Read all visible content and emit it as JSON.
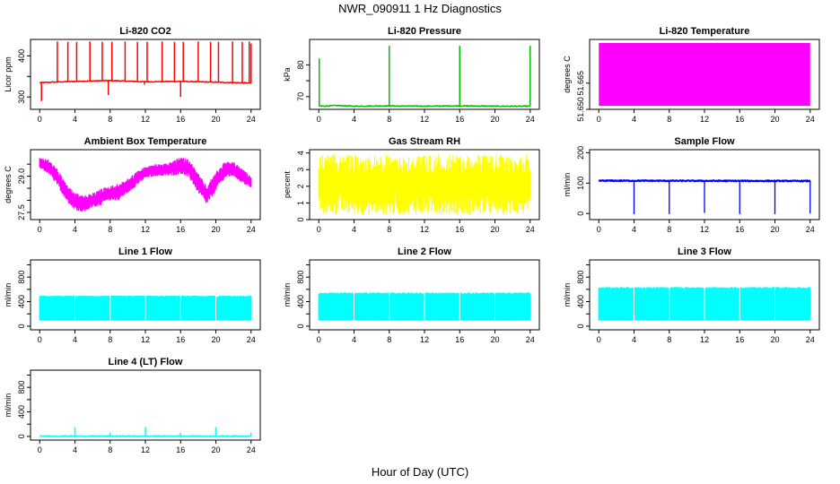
{
  "figure": {
    "title": "NWR_090911 1 Hz Diagnostics",
    "xlabel": "Hour of Day (UTC)"
  },
  "chart_data": [
    {
      "type": "line",
      "title": "Li-820 CO2",
      "ylabel": "Licor ppm",
      "color": "#ff0000",
      "xlim": [
        0,
        24
      ],
      "ylim": [
        270,
        440
      ],
      "xticks": [
        0,
        4,
        8,
        12,
        16,
        20,
        24
      ],
      "yticks": [
        300,
        350,
        400
      ],
      "yticklabels": [
        "300",
        "",
        "400"
      ],
      "baseline": [
        [
          0,
          335
        ],
        [
          4,
          338
        ],
        [
          8,
          340
        ],
        [
          12,
          337
        ],
        [
          16,
          338
        ],
        [
          20,
          336
        ],
        [
          24,
          334
        ]
      ],
      "spikes": [
        [
          0.2,
          290
        ],
        [
          2,
          435
        ],
        [
          3.2,
          434
        ],
        [
          4.2,
          434
        ],
        [
          5.7,
          435
        ],
        [
          7.1,
          434
        ],
        [
          7.8,
          305
        ],
        [
          8.2,
          434
        ],
        [
          9.7,
          435
        ],
        [
          11.1,
          434
        ],
        [
          11.9,
          330
        ],
        [
          12.2,
          434
        ],
        [
          13.9,
          435
        ],
        [
          15.3,
          434
        ],
        [
          16.0,
          300
        ],
        [
          16.3,
          434
        ],
        [
          18.0,
          435
        ],
        [
          19.4,
          434
        ],
        [
          20.3,
          434
        ],
        [
          21.9,
          435
        ],
        [
          23.0,
          434
        ],
        [
          23.8,
          435
        ],
        [
          24.0,
          430
        ]
      ]
    },
    {
      "type": "line",
      "title": "Li-820 Pressure",
      "ylabel": "kPa",
      "color": "#00c000",
      "xlim": [
        0,
        24
      ],
      "ylim": [
        66,
        88
      ],
      "xticks": [
        0,
        4,
        8,
        12,
        16,
        20,
        24
      ],
      "yticks": [
        70,
        75,
        80
      ],
      "yticklabels": [
        "70",
        "",
        "80"
      ],
      "baseline": [
        [
          0,
          67
        ],
        [
          2,
          67.2
        ],
        [
          4,
          67.0
        ],
        [
          8,
          67.1
        ],
        [
          12,
          67.0
        ],
        [
          16,
          67.1
        ],
        [
          20,
          67.0
        ],
        [
          24,
          67.0
        ]
      ],
      "spikes": [
        [
          0.05,
          82
        ],
        [
          8.0,
          86
        ],
        [
          16.0,
          86
        ],
        [
          24.0,
          86
        ]
      ]
    },
    {
      "type": "area",
      "title": "Li-820 Temperature",
      "ylabel": "degrees C",
      "color": "#ff00ff",
      "xlim": [
        0,
        24
      ],
      "ylim": [
        51.65,
        51.69
      ],
      "xticks": [
        0,
        4,
        8,
        12,
        16,
        20,
        24
      ],
      "yticks": [
        51.65,
        51.665
      ],
      "yticklabels": [
        "51.650",
        "51.665"
      ],
      "band": [
        51.652,
        51.688
      ]
    },
    {
      "type": "line",
      "title": "Ambient Box Temperature",
      "ylabel": "degrees C",
      "color": "#ff00ff",
      "xlim": [
        0,
        24
      ],
      "ylim": [
        27.2,
        30.1
      ],
      "xticks": [
        0,
        4,
        8,
        12,
        16,
        20,
        24
      ],
      "yticks": [
        27.5,
        28.0,
        28.5,
        29.0,
        29.5
      ],
      "yticklabels": [
        "27.5",
        "",
        "",
        "29.0",
        ""
      ],
      "envelope": [
        [
          0,
          29.3,
          29.8
        ],
        [
          1,
          29.1,
          29.7
        ],
        [
          2,
          28.6,
          29.3
        ],
        [
          3,
          28.0,
          28.7
        ],
        [
          4,
          27.6,
          28.3
        ],
        [
          5,
          27.5,
          28.2
        ],
        [
          6,
          27.7,
          28.3
        ],
        [
          7,
          27.8,
          28.5
        ],
        [
          8,
          28.0,
          28.6
        ],
        [
          9,
          28.0,
          28.7
        ],
        [
          10,
          28.3,
          28.9
        ],
        [
          11,
          28.6,
          29.2
        ],
        [
          12,
          28.9,
          29.4
        ],
        [
          13,
          29.0,
          29.5
        ],
        [
          14,
          29.0,
          29.5
        ],
        [
          15,
          29.0,
          29.6
        ],
        [
          16,
          29.1,
          29.8
        ],
        [
          17,
          28.9,
          29.7
        ],
        [
          18,
          28.3,
          29.1
        ],
        [
          19,
          27.8,
          28.6
        ],
        [
          20,
          28.4,
          29.2
        ],
        [
          21,
          28.9,
          29.6
        ],
        [
          22,
          29.0,
          29.6
        ],
        [
          23,
          28.7,
          29.3
        ],
        [
          24,
          28.5,
          29.0
        ]
      ]
    },
    {
      "type": "area",
      "title": "Gas Stream RH",
      "ylabel": "percent",
      "color": "#ffff00",
      "xlim": [
        0,
        24
      ],
      "ylim": [
        0,
        4.2
      ],
      "xticks": [
        0,
        4,
        8,
        12,
        16,
        20,
        24
      ],
      "yticks": [
        0,
        1,
        2,
        3,
        4
      ],
      "yticklabels": [
        "0",
        "1",
        "2",
        "3",
        "4"
      ],
      "band": [
        0.3,
        3.9
      ]
    },
    {
      "type": "line",
      "title": "Sample Flow",
      "ylabel": "ml/min",
      "color": "#0000ff",
      "xlim": [
        0,
        24
      ],
      "ylim": [
        -20,
        210
      ],
      "xticks": [
        0,
        4,
        8,
        12,
        16,
        20,
        24
      ],
      "yticks": [
        0,
        100,
        200
      ],
      "yticklabels": [
        "0",
        "100",
        "200"
      ],
      "baseline": [
        [
          0,
          108
        ],
        [
          24,
          107
        ]
      ],
      "drops": [
        [
          4.0,
          -2
        ],
        [
          8.0,
          -2
        ],
        [
          12.0,
          2
        ],
        [
          16.0,
          -2
        ],
        [
          20.0,
          -2
        ],
        [
          24.0,
          0
        ]
      ]
    },
    {
      "type": "area",
      "title": "Line 1 Flow",
      "ylabel": "ml/min",
      "color": "#00ffff",
      "xlim": [
        0,
        24
      ],
      "ylim": [
        -60,
        1080
      ],
      "xticks": [
        0,
        4,
        8,
        12,
        16,
        20,
        24
      ],
      "yticks": [
        0,
        200,
        400,
        600,
        800,
        1000
      ],
      "yticklabels": [
        "0",
        "",
        "400",
        "",
        "800",
        ""
      ],
      "band": [
        90,
        500
      ]
    },
    {
      "type": "area",
      "title": "Line 2 Flow",
      "ylabel": "ml/min",
      "color": "#00ffff",
      "xlim": [
        0,
        24
      ],
      "ylim": [
        -60,
        1080
      ],
      "xticks": [
        0,
        4,
        8,
        12,
        16,
        20,
        24
      ],
      "yticks": [
        0,
        200,
        400,
        600,
        800,
        1000
      ],
      "yticklabels": [
        "0",
        "",
        "400",
        "",
        "800",
        ""
      ],
      "band": [
        90,
        550
      ]
    },
    {
      "type": "area",
      "title": "Line 3 Flow",
      "ylabel": "ml/min",
      "color": "#00ffff",
      "xlim": [
        0,
        24
      ],
      "ylim": [
        -60,
        1080
      ],
      "xticks": [
        0,
        4,
        8,
        12,
        16,
        20,
        24
      ],
      "yticks": [
        0,
        200,
        400,
        600,
        800,
        1000
      ],
      "yticklabels": [
        "0",
        "",
        "400",
        "",
        "800",
        ""
      ],
      "band": [
        90,
        640
      ]
    },
    {
      "type": "line",
      "title": "Line 4 (LT) Flow",
      "ylabel": "ml/min",
      "color": "#00ffff",
      "xlim": [
        0,
        24
      ],
      "ylim": [
        -60,
        1080
      ],
      "xticks": [
        0,
        4,
        8,
        12,
        16,
        20,
        24
      ],
      "yticks": [
        0,
        200,
        400,
        600,
        800,
        1000
      ],
      "yticklabels": [
        "0",
        "",
        "400",
        "",
        "800",
        ""
      ],
      "baseline": [
        [
          0,
          5
        ],
        [
          24,
          5
        ]
      ],
      "spikes": [
        [
          4.0,
          150
        ],
        [
          8.0,
          60
        ],
        [
          12.0,
          150
        ],
        [
          16.0,
          60
        ],
        [
          20.0,
          150
        ],
        [
          24.0,
          60
        ]
      ]
    }
  ]
}
